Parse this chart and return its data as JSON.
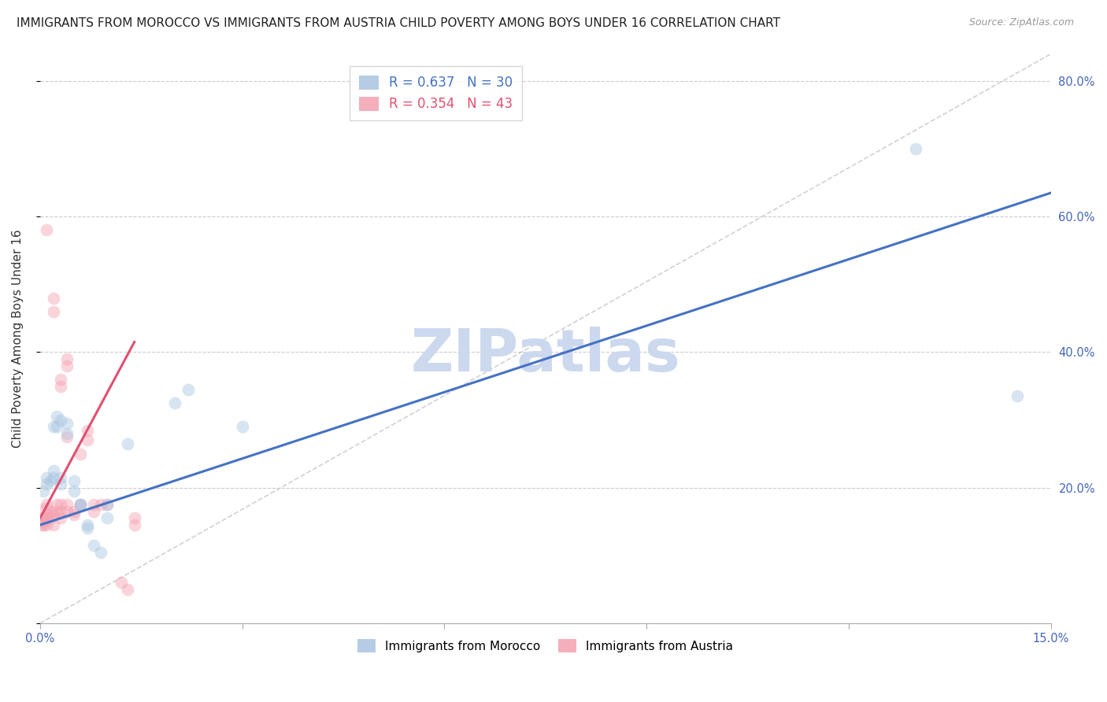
{
  "title": "IMMIGRANTS FROM MOROCCO VS IMMIGRANTS FROM AUSTRIA CHILD POVERTY AMONG BOYS UNDER 16 CORRELATION CHART",
  "source": "Source: ZipAtlas.com",
  "ylabel": "Child Poverty Among Boys Under 16",
  "x_min": 0.0,
  "x_max": 0.15,
  "y_min": 0.0,
  "y_max": 0.84,
  "x_ticks": [
    0.0,
    0.03,
    0.06,
    0.09,
    0.12,
    0.15
  ],
  "x_tick_labels": [
    "0.0%",
    "",
    "",
    "",
    "",
    "15.0%"
  ],
  "y_ticks": [
    0.0,
    0.2,
    0.4,
    0.6,
    0.8
  ],
  "y_tick_labels_right": [
    "",
    "20.0%",
    "40.0%",
    "60.0%",
    "80.0%"
  ],
  "morocco_color": "#a8c4e0",
  "austria_color": "#f4a0b0",
  "morocco_scatter_x": [
    0.0005,
    0.001,
    0.001,
    0.0015,
    0.002,
    0.002,
    0.002,
    0.0025,
    0.0025,
    0.003,
    0.003,
    0.003,
    0.004,
    0.004,
    0.005,
    0.005,
    0.006,
    0.006,
    0.007,
    0.007,
    0.008,
    0.009,
    0.01,
    0.01,
    0.013,
    0.02,
    0.022,
    0.03,
    0.13,
    0.145
  ],
  "morocco_scatter_y": [
    0.195,
    0.205,
    0.215,
    0.21,
    0.215,
    0.225,
    0.29,
    0.29,
    0.305,
    0.205,
    0.215,
    0.3,
    0.28,
    0.295,
    0.195,
    0.21,
    0.175,
    0.175,
    0.14,
    0.145,
    0.115,
    0.105,
    0.175,
    0.155,
    0.265,
    0.325,
    0.345,
    0.29,
    0.7,
    0.335
  ],
  "austria_scatter_x": [
    0.0002,
    0.0003,
    0.0003,
    0.0005,
    0.0005,
    0.0008,
    0.001,
    0.001,
    0.001,
    0.001,
    0.0012,
    0.0015,
    0.0015,
    0.002,
    0.002,
    0.002,
    0.002,
    0.0025,
    0.0025,
    0.003,
    0.003,
    0.003,
    0.003,
    0.003,
    0.004,
    0.004,
    0.004,
    0.004,
    0.004,
    0.005,
    0.005,
    0.006,
    0.006,
    0.007,
    0.007,
    0.008,
    0.008,
    0.009,
    0.01,
    0.012,
    0.013,
    0.014,
    0.014
  ],
  "austria_scatter_y": [
    0.145,
    0.15,
    0.155,
    0.145,
    0.155,
    0.17,
    0.145,
    0.155,
    0.175,
    0.58,
    0.16,
    0.155,
    0.165,
    0.145,
    0.16,
    0.46,
    0.48,
    0.165,
    0.175,
    0.155,
    0.165,
    0.35,
    0.36,
    0.175,
    0.38,
    0.39,
    0.165,
    0.175,
    0.275,
    0.165,
    0.16,
    0.175,
    0.25,
    0.27,
    0.285,
    0.175,
    0.165,
    0.175,
    0.175,
    0.06,
    0.05,
    0.145,
    0.155
  ],
  "morocco_trend_x": [
    0.0,
    0.15
  ],
  "morocco_trend_y": [
    0.145,
    0.635
  ],
  "austria_trend_x": [
    0.0,
    0.014
  ],
  "austria_trend_y": [
    0.155,
    0.415
  ],
  "diag_line_x": [
    0.0,
    0.15
  ],
  "diag_line_y": [
    0.0,
    0.84
  ],
  "title_fontsize": 11,
  "axis_label_fontsize": 11,
  "tick_fontsize": 10.5,
  "scatter_size": 130,
  "scatter_alpha": 0.45,
  "trend_linewidth": 2.2,
  "grid_color": "#cccccc",
  "background_color": "#ffffff",
  "title_color": "#222222",
  "axis_color": "#4466bb",
  "watermark": "ZIPatlas",
  "watermark_color": "#ccd8ee",
  "watermark_fontsize": 54
}
